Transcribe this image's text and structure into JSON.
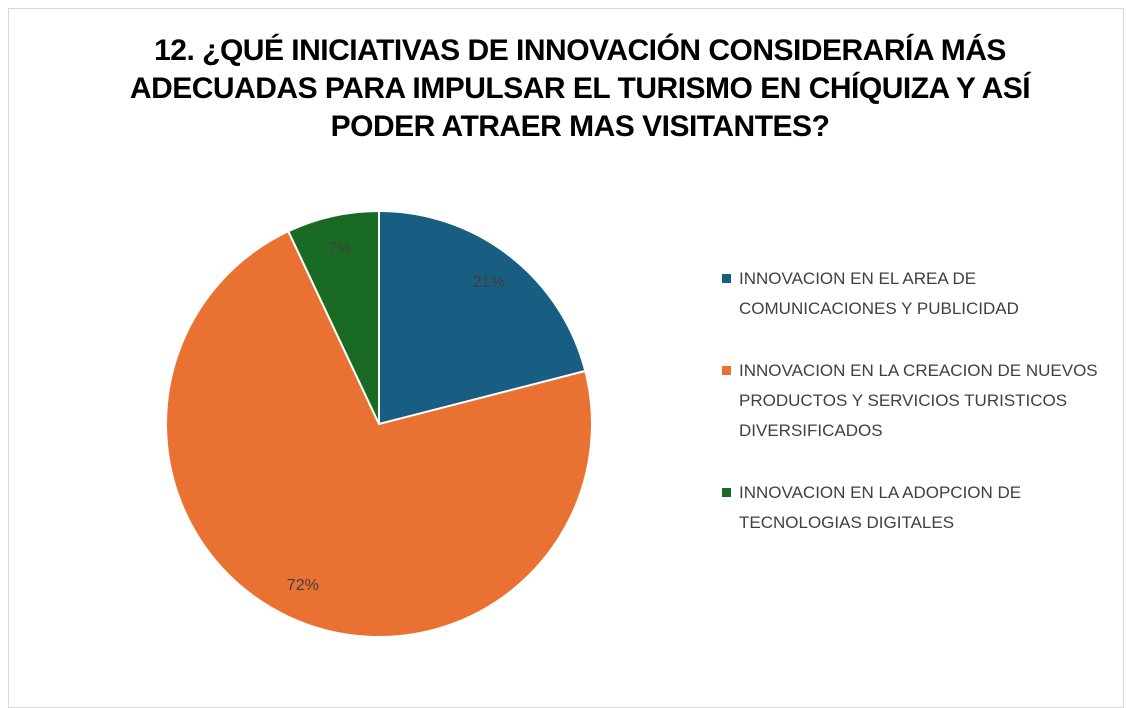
{
  "chart_data": {
    "type": "pie",
    "title": "12. ¿QUÉ INICIATIVAS DE INNOVACIÓN CONSIDERARÍA MÁS ADECUADAS PARA IMPULSAR EL TURISMO EN CHÍQUIZA Y ASÍ PODER ATRAER MAS VISITANTES?",
    "categories": [
      "INNOVACION EN EL AREA DE COMUNICACIONES Y PUBLICIDAD",
      "INNOVACION EN LA CREACION DE NUEVOS PRODUCTOS Y SERVICIOS TURISTICOS DIVERSIFICADOS",
      "INNOVACION EN LA ADOPCION DE TECNOLOGIAS DIGITALES"
    ],
    "values": [
      21,
      72,
      7
    ],
    "value_labels": [
      "21%",
      "72%",
      "7%"
    ],
    "colors": [
      "#185e82",
      "#e97132",
      "#196b24"
    ],
    "legend": "right"
  }
}
